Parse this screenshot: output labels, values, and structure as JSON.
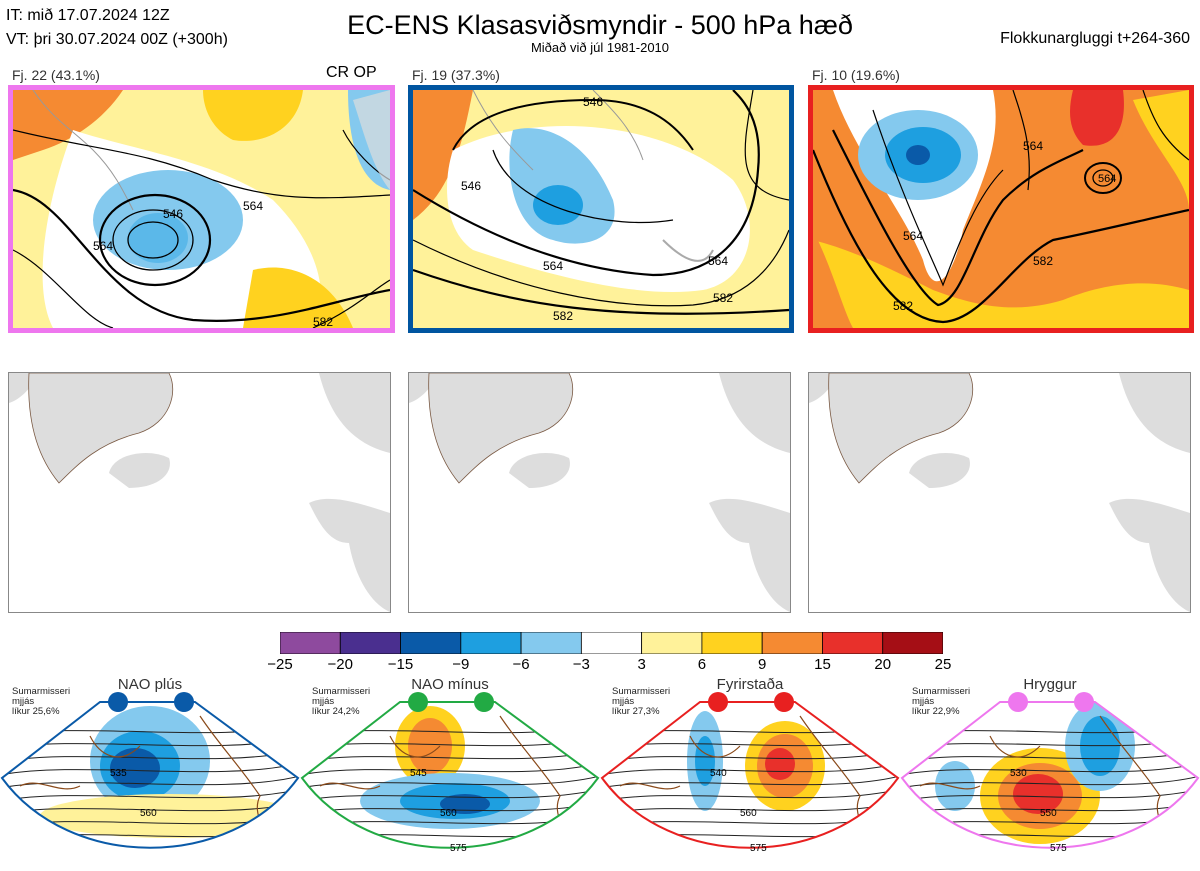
{
  "header": {
    "it_line": "IT: mið 17.07.2024 12Z",
    "vt_line": "VT: þri 30.07.2024 00Z  (+300h)",
    "title": "EC-ENS Klasasviðsmyndir - 500 hPa hæð",
    "subtitle": "Miðað við júl 1981-2010",
    "window": "Flokkunargluggi t+264-360"
  },
  "clusters": [
    {
      "label": "Fj. 22 (43.1%)",
      "extra": "CR OP",
      "border": "#ee77ee",
      "contours": [
        "546",
        "564",
        "564",
        "582"
      ]
    },
    {
      "label": "Fj. 19 (37.3%)",
      "extra": "",
      "border": "#0055a0",
      "contours": [
        "546",
        "546",
        "564",
        "582",
        "582",
        "564"
      ]
    },
    {
      "label": "Fj. 10 (19.6%)",
      "extra": "",
      "border": "#e82020",
      "contours": [
        "564",
        "564",
        "582",
        "582",
        "564"
      ]
    }
  ],
  "colorbar": {
    "colors": [
      "#8e4a9e",
      "#4a2f8f",
      "#0a5aa8",
      "#1e9fe0",
      "#84c9ee",
      "#ffffff",
      "#fff29a",
      "#ffd21f",
      "#f58a32",
      "#e8302b",
      "#a50e15"
    ],
    "ticks": [
      "−25",
      "−20",
      "−15",
      "−9",
      "−6",
      "−3",
      "3",
      "6",
      "9",
      "15",
      "20",
      "25"
    ]
  },
  "regimes": [
    {
      "name": "NAO plús",
      "note1": "Sumarmisseri",
      "note2": "mjjás",
      "note3": "líkur 25,6%",
      "color": "#0a5aa8",
      "labels": [
        "535",
        "560"
      ]
    },
    {
      "name": "NAO mínus",
      "note1": "Sumarmisseri",
      "note2": "mjjás",
      "note3": "líkur 24,2%",
      "color": "#22aa44",
      "labels": [
        "545",
        "560",
        "575"
      ]
    },
    {
      "name": "Fyrirstaða",
      "note1": "Sumarmisseri",
      "note2": "mjjás",
      "note3": "líkur 27,3%",
      "color": "#e82020",
      "labels": [
        "540",
        "560",
        "575"
      ]
    },
    {
      "name": "Hryggur",
      "note1": "Sumarmisseri",
      "note2": "mjjás",
      "note3": "líkur 22,9%",
      "color": "#ee77ee",
      "labels": [
        "530",
        "550",
        "575"
      ]
    }
  ]
}
